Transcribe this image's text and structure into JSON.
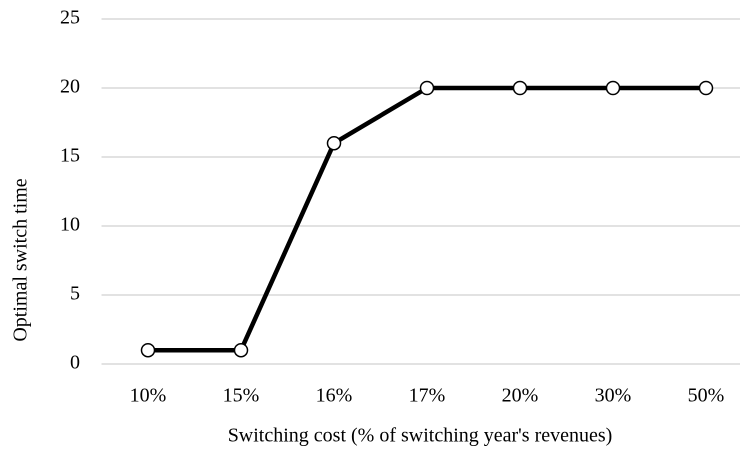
{
  "chart_data": {
    "type": "line",
    "xlabel": "Switching cost (% of switching year's revenues)",
    "ylabel": "Optimal switch time",
    "categories": [
      "10%",
      "15%",
      "16%",
      "17%",
      "20%",
      "30%",
      "50%"
    ],
    "series": [
      {
        "color": "#000000",
        "values": [
          1,
          1,
          16,
          20,
          20,
          20,
          20
        ]
      }
    ],
    "ylim": [
      0,
      25
    ],
    "yticks": [
      0,
      5,
      10,
      15,
      20,
      25
    ],
    "grid": true
  }
}
